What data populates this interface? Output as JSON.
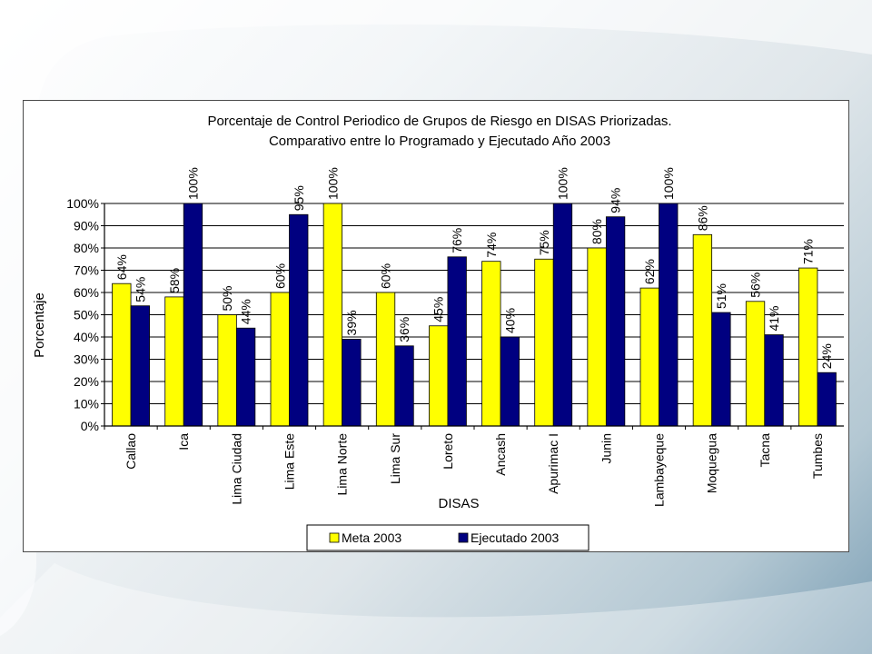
{
  "chart_data": {
    "type": "bar",
    "title_lines": [
      "Porcentaje de Control Periodico de Grupos de Riesgo en DISAS Priorizadas.",
      "Comparativo entre lo Programado y Ejecutado Año 2003"
    ],
    "xlabel": "DISAS",
    "ylabel": "Porcentaje",
    "ylim": [
      0,
      100
    ],
    "yticks": [
      "0%",
      "10%",
      "20%",
      "30%",
      "40%",
      "50%",
      "60%",
      "70%",
      "80%",
      "90%",
      "100%"
    ],
    "categories": [
      "Callao",
      "Ica",
      "Lima Ciudad",
      "Lima Este",
      "Lima Norte",
      "Lima Sur",
      "Loreto",
      "Ancash",
      "Apurimac I",
      "Junin",
      "Lambayeque",
      "Moquegua",
      "Tacna",
      "Tumbes"
    ],
    "series": [
      {
        "name": "Meta 2003",
        "color": "#ffff00",
        "values": [
          64,
          58,
          50,
          60,
          100,
          60,
          45,
          74,
          75,
          80,
          62,
          86,
          56,
          71
        ],
        "labels": [
          "64%",
          "58%",
          "50%",
          "60%",
          "100%",
          "60%",
          "45%",
          "74%",
          "75%",
          "80%",
          "62%",
          "86%",
          "56%",
          "71%"
        ]
      },
      {
        "name": "Ejecutado 2003",
        "color": "#000080",
        "values": [
          54,
          100,
          44,
          95,
          39,
          36,
          76,
          40,
          100,
          94,
          100,
          51,
          41,
          24
        ],
        "labels": [
          "54%",
          "100%",
          "44%",
          "95%",
          "39%",
          "36%",
          "76%",
          "40%",
          "100%",
          "94%",
          "100%",
          "51%",
          "41%",
          "24%"
        ]
      }
    ],
    "grid": true,
    "legend_position": "bottom"
  }
}
